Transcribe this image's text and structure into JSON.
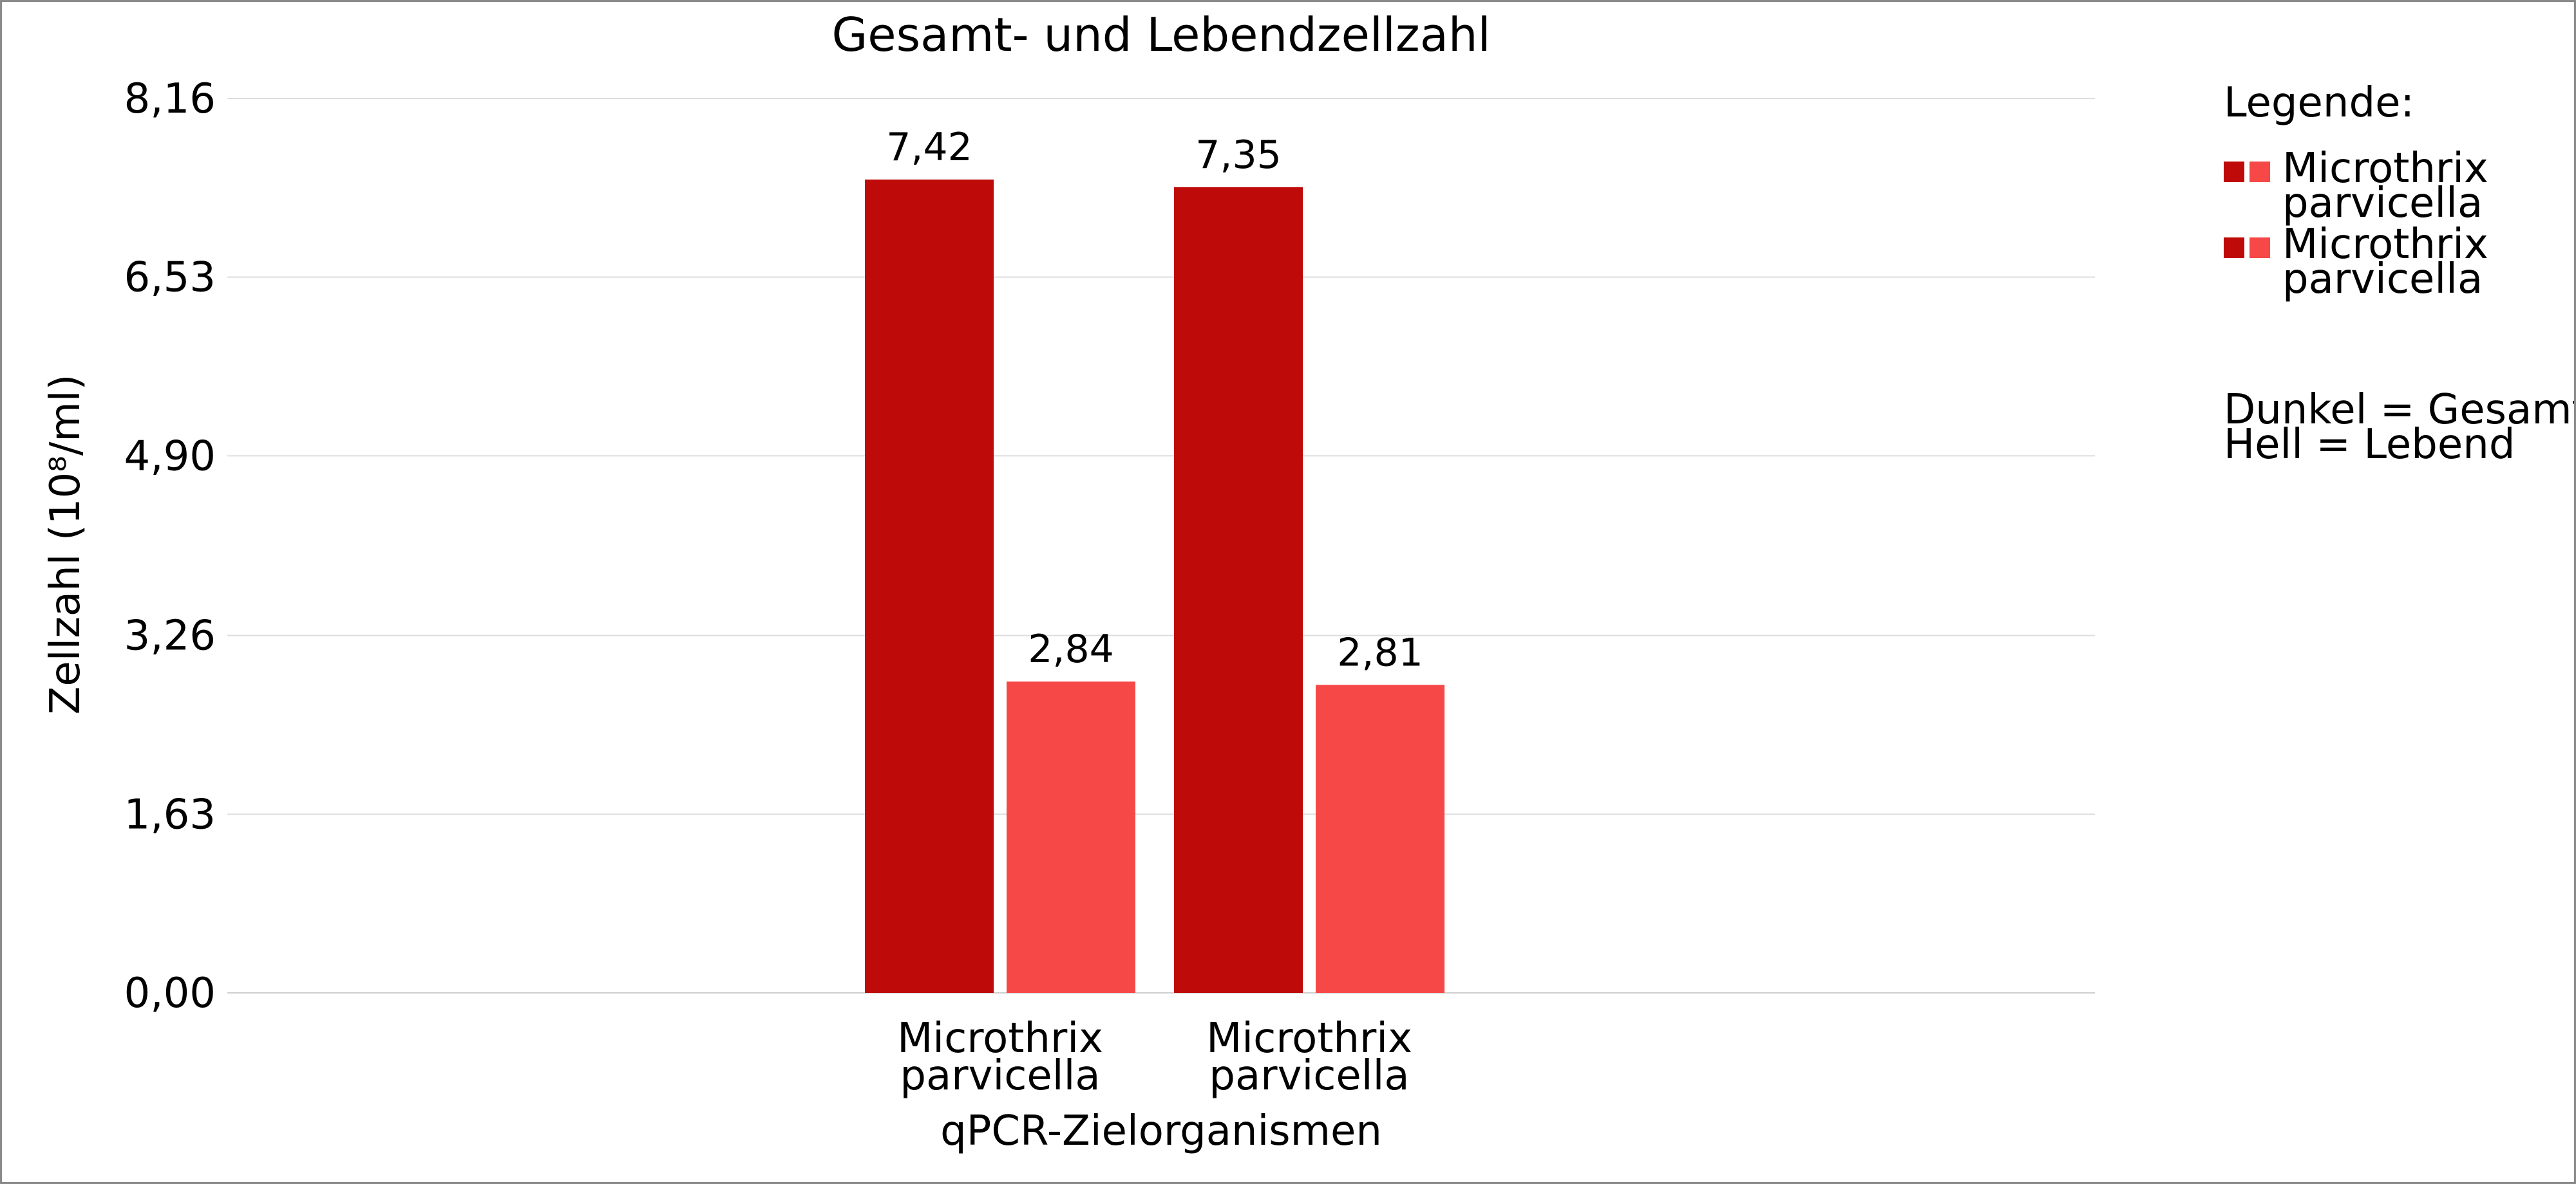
{
  "chart_data": {
    "type": "bar",
    "title": "Gesamt- und Lebendzellzahl",
    "xlabel": "qPCR-Zielorganismen",
    "ylabel": "Zellzahl (10⁸/ml)",
    "ylim": [
      0,
      8.16
    ],
    "yticks": [
      "0,00",
      "1,63",
      "3,26",
      "4,90",
      "6,53",
      "8,16"
    ],
    "ytick_values": [
      0,
      1.63,
      3.26,
      4.9,
      6.53,
      8.16
    ],
    "grid": true,
    "groups": [
      {
        "category_lines": [
          "Microthrix",
          "parvicella"
        ],
        "bars": [
          {
            "value": 7.42,
            "label": "7,42",
            "color": "#bf0a0a"
          },
          {
            "value": 2.84,
            "label": "2,84",
            "color": "#f74848"
          }
        ]
      },
      {
        "category_lines": [
          "Microthrix",
          "parvicella"
        ],
        "bars": [
          {
            "value": 7.35,
            "label": "7,35",
            "color": "#bf0a0a"
          },
          {
            "value": 2.81,
            "label": "2,81",
            "color": "#f74848"
          }
        ]
      }
    ],
    "legend": {
      "placement": "right",
      "heading": "Legende:",
      "entries": [
        {
          "lines": [
            "Microthrix",
            "parvicella"
          ],
          "dark_color": "#bf0a0a",
          "light_color": "#f74848"
        },
        {
          "lines": [
            "Microthrix",
            "parvicella"
          ],
          "dark_color": "#bf0a0a",
          "light_color": "#f74848"
        }
      ],
      "notes": [
        "Dunkel = Gesamt",
        "Hell = Lebend"
      ]
    }
  }
}
